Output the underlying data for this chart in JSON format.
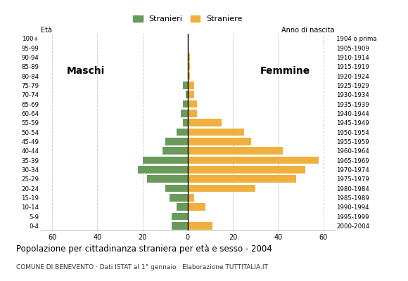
{
  "age_groups": [
    "0-4",
    "5-9",
    "10-14",
    "15-19",
    "20-24",
    "25-29",
    "30-34",
    "35-39",
    "40-44",
    "45-49",
    "50-54",
    "55-59",
    "60-64",
    "65-69",
    "70-74",
    "75-79",
    "80-84",
    "85-89",
    "90-94",
    "95-99",
    "100+"
  ],
  "birth_years": [
    "2000-2004",
    "1995-1999",
    "1990-1994",
    "1985-1989",
    "1980-1984",
    "1975-1979",
    "1970-1974",
    "1965-1969",
    "1960-1964",
    "1955-1959",
    "1950-1954",
    "1945-1949",
    "1940-1944",
    "1935-1939",
    "1930-1934",
    "1925-1929",
    "1920-1924",
    "1915-1919",
    "1910-1914",
    "1905-1909",
    "1904 o prima"
  ],
  "maschi": [
    7,
    7,
    5,
    8,
    10,
    18,
    22,
    20,
    11,
    10,
    5,
    2,
    3,
    2,
    1,
    2,
    0,
    0,
    0,
    0,
    0
  ],
  "femmine": [
    11,
    0,
    8,
    3,
    30,
    48,
    52,
    58,
    42,
    28,
    25,
    15,
    4,
    4,
    3,
    3,
    1,
    1,
    1,
    0,
    0
  ],
  "maschi_color": "#6a9a5a",
  "femmine_color": "#f0b040",
  "background_color": "#ffffff",
  "grid_color": "#cccccc",
  "title": "Popolazione per cittadinanza straniera per età e sesso - 2004",
  "subtitle": "COMUNE DI BENEVENTO · Dati ISTAT al 1° gennaio · Elaborazione TUTTITALIA.IT",
  "legend_maschi": "Stranieri",
  "legend_femmine": "Straniere",
  "eta_label": "Età",
  "anno_label": "Anno di nascita",
  "maschi_label": "Maschi",
  "femmine_label": "Femmine",
  "xlim": 65
}
